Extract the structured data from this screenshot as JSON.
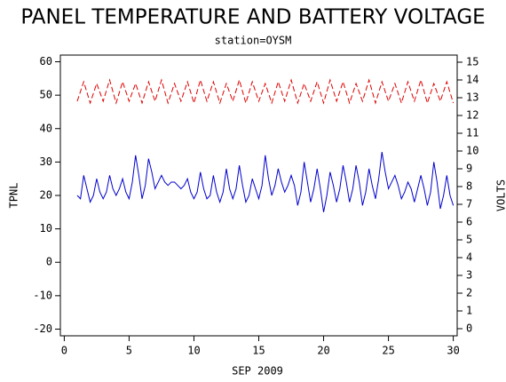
{
  "chart_data": {
    "type": "line",
    "title": "PANEL TEMPERATURE AND BATTERY VOLTAGE",
    "subtitle": "station=OYSM",
    "xlabel": "SEP 2009",
    "ylabel": "TPNL",
    "y2label": "VOLTS",
    "xlim": [
      -0.3,
      30.3
    ],
    "xticks": [
      0,
      5,
      10,
      15,
      20,
      25,
      30
    ],
    "ylim": [
      -22,
      62
    ],
    "yticks": [
      -20,
      -10,
      0,
      10,
      20,
      30,
      40,
      50,
      60
    ],
    "y2lim": [
      -0.4,
      15.4
    ],
    "y2ticks": [
      0,
      1,
      2,
      3,
      4,
      5,
      6,
      7,
      8,
      9,
      10,
      11,
      12,
      13,
      14,
      15
    ],
    "series": [
      {
        "name": "TPNL",
        "color": "#0000cc",
        "axis": "y",
        "x": [
          1,
          1.25,
          1.5,
          1.75,
          2,
          2.25,
          2.5,
          2.75,
          3,
          3.25,
          3.5,
          3.75,
          4,
          4.25,
          4.5,
          4.75,
          5,
          5.25,
          5.5,
          5.75,
          6,
          6.25,
          6.5,
          6.75,
          7,
          7.25,
          7.5,
          7.75,
          8,
          8.25,
          8.5,
          8.75,
          9,
          9.25,
          9.5,
          9.75,
          10,
          10.25,
          10.5,
          10.75,
          11,
          11.25,
          11.5,
          11.75,
          12,
          12.25,
          12.5,
          12.75,
          13,
          13.25,
          13.5,
          13.75,
          14,
          14.25,
          14.5,
          14.75,
          15,
          15.25,
          15.5,
          15.75,
          16,
          16.25,
          16.5,
          16.75,
          17,
          17.25,
          17.5,
          17.75,
          18,
          18.25,
          18.5,
          18.75,
          19,
          19.25,
          19.5,
          19.75,
          20,
          20.25,
          20.5,
          20.75,
          21,
          21.25,
          21.5,
          21.75,
          22,
          22.25,
          22.5,
          22.75,
          23,
          23.25,
          23.5,
          23.75,
          24,
          24.25,
          24.5,
          24.75,
          25,
          25.25,
          25.5,
          25.75,
          26,
          26.25,
          26.5,
          26.75,
          27,
          27.25,
          27.5,
          27.75,
          28,
          28.25,
          28.5,
          28.75,
          29,
          29.25,
          29.5,
          29.75,
          30
        ],
        "values": [
          20,
          19,
          26,
          22,
          18,
          20,
          25,
          21,
          19,
          21,
          26,
          22,
          20,
          22,
          25,
          21,
          19,
          24,
          32,
          26,
          19,
          23,
          31,
          27,
          22,
          24,
          26,
          24,
          23,
          24,
          24,
          23,
          22,
          23,
          25,
          21,
          19,
          21,
          27,
          22,
          19,
          20,
          26,
          21,
          18,
          21,
          28,
          22,
          19,
          22,
          29,
          23,
          18,
          20,
          25,
          22,
          19,
          23,
          32,
          25,
          20,
          23,
          28,
          24,
          21,
          23,
          26,
          23,
          17,
          21,
          30,
          24,
          18,
          22,
          28,
          22,
          15,
          20,
          27,
          23,
          18,
          22,
          29,
          24,
          18,
          22,
          29,
          24,
          17,
          21,
          28,
          23,
          19,
          25,
          33,
          27,
          22,
          24,
          26,
          23,
          19,
          21,
          24,
          22,
          18,
          22,
          26,
          22,
          17,
          21,
          30,
          24,
          16,
          20,
          26,
          20,
          17
        ]
      },
      {
        "name": "VOLTS",
        "color": "#dd0000",
        "axis": "y2",
        "x": [
          1,
          1.5,
          2,
          2.5,
          3,
          3.5,
          4,
          4.5,
          5,
          5.5,
          6,
          6.5,
          7,
          7.5,
          8,
          8.5,
          9,
          9.5,
          10,
          10.5,
          11,
          11.5,
          12,
          12.5,
          13,
          13.5,
          14,
          14.5,
          15,
          15.5,
          16,
          16.5,
          17,
          17.5,
          18,
          18.5,
          19,
          19.5,
          20,
          20.5,
          21,
          21.5,
          22,
          22.5,
          23,
          23.5,
          24,
          24.5,
          25,
          25.5,
          26,
          26.5,
          27,
          27.5,
          28,
          28.5,
          29,
          29.5,
          30
        ],
        "values": [
          12.8,
          13.9,
          12.7,
          13.8,
          12.8,
          14.0,
          12.7,
          13.9,
          12.8,
          13.8,
          12.7,
          13.9,
          12.8,
          14.0,
          12.7,
          13.8,
          12.8,
          13.9,
          12.7,
          14.0,
          12.8,
          13.9,
          12.7,
          13.8,
          12.8,
          14.0,
          12.7,
          13.9,
          12.8,
          13.8,
          12.7,
          13.9,
          12.8,
          14.0,
          12.7,
          13.8,
          12.8,
          13.9,
          12.7,
          14.0,
          12.8,
          13.9,
          12.7,
          13.8,
          12.8,
          14.0,
          12.7,
          13.9,
          12.8,
          13.8,
          12.7,
          13.9,
          12.8,
          14.0,
          12.7,
          13.8,
          12.8,
          13.9,
          12.7
        ]
      }
    ]
  }
}
